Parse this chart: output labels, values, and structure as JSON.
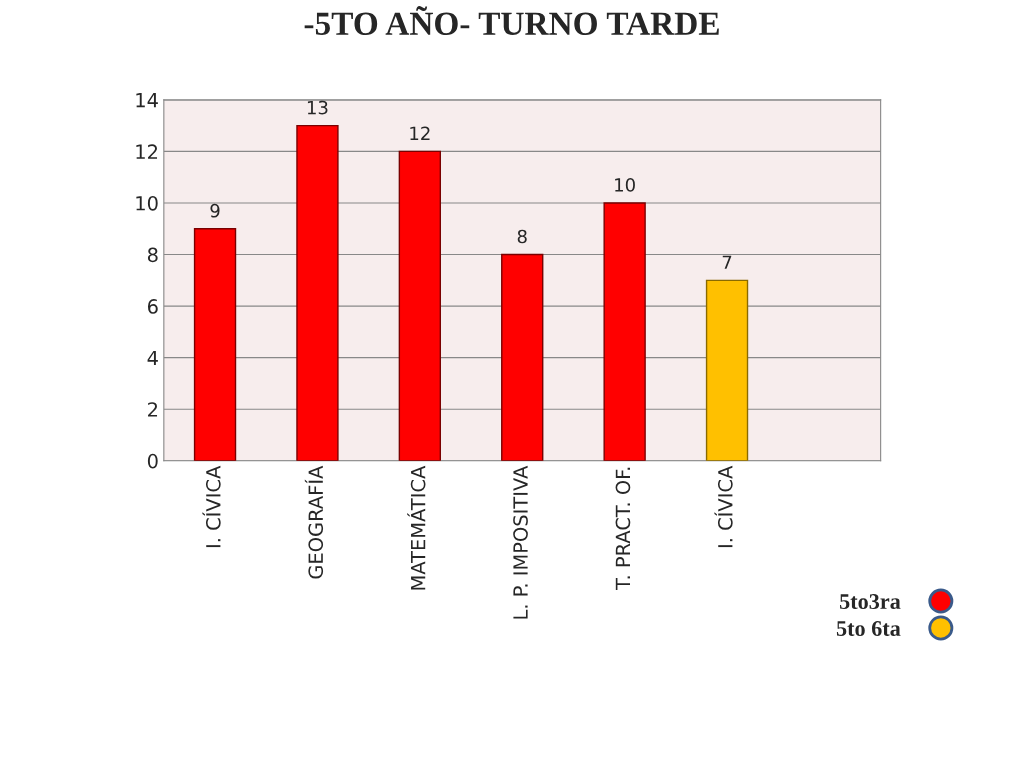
{
  "chart_data": {
    "type": "bar",
    "title": "-5TO AÑO- TURNO TARDE",
    "categories": [
      "I. CÍVICA",
      "GEOGRAFÍA",
      "MATEMÁTICA",
      "L. P. IMPOSITIVA",
      "T. PRACT. OF.",
      "I. CÍVICA",
      null
    ],
    "series": [
      {
        "name": "5to3ra",
        "color": "#ff0000",
        "values": [
          9,
          13,
          12,
          8,
          10,
          null,
          null
        ]
      },
      {
        "name": "5to 6ta",
        "color": "#ffc000",
        "values": [
          null,
          null,
          null,
          null,
          null,
          7,
          null
        ]
      }
    ],
    "ylim": [
      0,
      14
    ],
    "yticks": [
      0,
      2,
      4,
      6,
      8,
      10,
      12,
      14
    ],
    "grid": "y",
    "data_labels": true,
    "legend": "bottom right"
  }
}
